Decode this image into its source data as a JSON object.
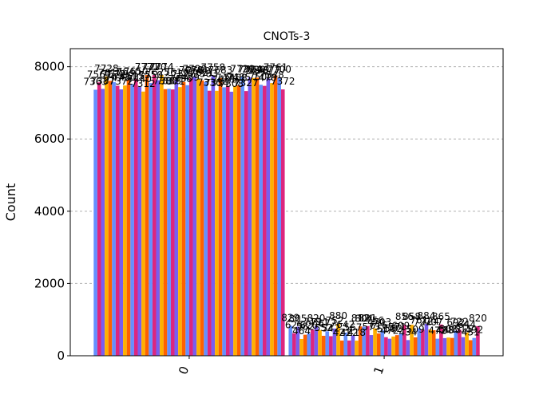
{
  "chart_data": {
    "type": "bar",
    "title": "CNOTs-3",
    "xlabel": "",
    "ylabel": "Count",
    "categories": [
      "0",
      "1"
    ],
    "ylim": [
      0,
      8500
    ],
    "yticks": [
      0,
      2000,
      4000,
      6000,
      8000
    ],
    "grid": "y-dashed",
    "legend": "none",
    "palette": [
      "#648fff",
      "#dc267f",
      "#785ef0",
      "#ffb000",
      "#fe6100"
    ],
    "series": [
      {
        "values": [
          7363,
          829
        ]
      },
      {
        "values": [
          7567,
          625
        ]
      },
      {
        "values": [
          7387,
          805
        ]
      },
      {
        "values": [
          7728,
          464
        ]
      },
      {
        "values": [
          7610,
          582
        ]
      },
      {
        "values": [
          7572,
          620
        ]
      },
      {
        "values": [
          7473,
          719
        ]
      },
      {
        "values": [
          7372,
          820
        ]
      },
      {
        "values": [
          7481,
          711
        ]
      },
      {
        "values": [
          7640,
          552
        ]
      },
      {
        "values": [
          7515,
          677
        ]
      },
      {
        "values": [
          7650,
          542
        ]
      },
      {
        "values": [
          7440,
          752
        ]
      },
      {
        "values": [
          7312,
          880
        ]
      },
      {
        "values": [
          7771,
          421
        ]
      },
      {
        "values": [
          7550,
          642
        ]
      },
      {
        "values": [
          7770,
          422
        ]
      },
      {
        "values": [
          7625,
          567
        ]
      },
      {
        "values": [
          7774,
          418
        ]
      },
      {
        "values": [
          7380,
          812
        ]
      },
      {
        "values": [
          7388,
          804
        ]
      },
      {
        "values": [
          7371,
          821
        ]
      },
      {
        "values": [
          7619,
          573
        ]
      },
      {
        "values": [
          7436,
          756
        ]
      },
      {
        "values": [
          7576,
          616
        ]
      },
      {
        "values": [
          7489,
          703
        ]
      },
      {
        "values": [
          7678,
          514
        ]
      },
      {
        "values": [
          7720,
          472
        ]
      },
      {
        "values": [
          7660,
          532
        ]
      },
      {
        "values": [
          7621,
          571
        ]
      },
      {
        "values": [
          7583,
          609
        ]
      },
      {
        "values": [
          7336,
          856
        ]
      },
      {
        "values": [
          7758,
          434
        ]
      },
      {
        "values": [
          7334,
          858
        ]
      },
      {
        "values": [
          7683,
          509
        ]
      },
      {
        "values": [
          7431,
          761
        ]
      },
      {
        "values": [
          7471,
          721
        ]
      },
      {
        "values": [
          7308,
          884
        ]
      },
      {
        "values": [
          7468,
          724
        ]
      },
      {
        "values": [
          7485,
          707
        ]
      },
      {
        "values": [
          7720,
          472
        ]
      },
      {
        "values": [
          7327,
          865
        ]
      },
      {
        "values": [
          7704,
          488
        ]
      },
      {
        "values": [
          7689,
          503
        ]
      },
      {
        "values": [
          7699,
          493
        ]
      },
      {
        "values": [
          7500,
          692
        ]
      },
      {
        "values": [
          7470,
          722
        ]
      },
      {
        "values": [
          7677,
          515
        ]
      },
      {
        "values": [
          7548,
          644
        ]
      },
      {
        "values": [
          7761,
          431
        ]
      },
      {
        "values": [
          7700,
          492
        ]
      },
      {
        "values": [
          7372,
          820
        ]
      }
    ]
  }
}
